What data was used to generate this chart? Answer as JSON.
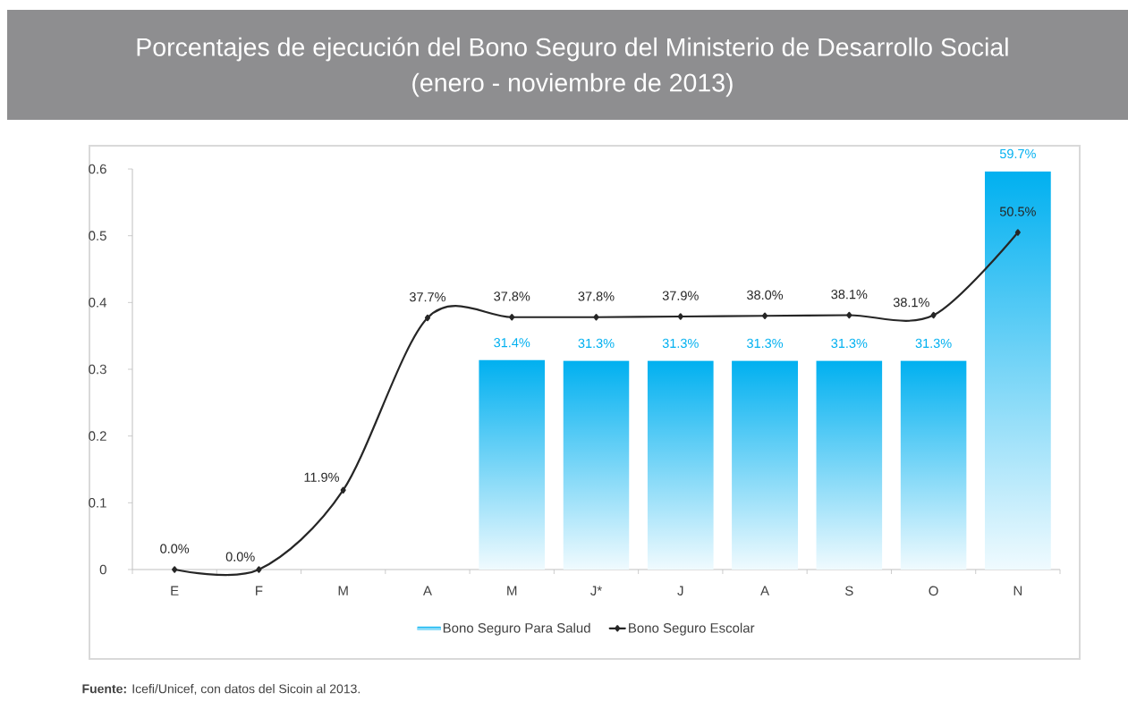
{
  "chart_data": {
    "type": "bar",
    "title": "Porcentajes de ejecución del Bono Seguro del Ministerio de Desarrollo Social",
    "subtitle": "(enero - noviembre de 2013)",
    "categories": [
      "E",
      "F",
      "M",
      "A",
      "M",
      "J*",
      "J",
      "A",
      "S",
      "O",
      "N"
    ],
    "series": [
      {
        "name": "Bono Seguro Para Salud",
        "color": "#00b0f0",
        "values": [
          null,
          null,
          null,
          null,
          0.314,
          0.313,
          0.313,
          0.313,
          0.313,
          0.313,
          0.597
        ],
        "value_labels": [
          null,
          null,
          null,
          null,
          "31.4%",
          "31.3%",
          "31.3%",
          "31.3%",
          "31.3%",
          "31.3%",
          "59.7%"
        ]
      },
      {
        "name": "Bono Seguro Escolar",
        "type": "line",
        "color": "#262626",
        "marker": "diamond",
        "values": [
          0,
          0,
          0.119,
          0.377,
          0.378,
          0.378,
          0.379,
          0.38,
          0.381,
          0.381,
          0.505
        ],
        "value_labels": [
          "0.0%",
          "0.0%",
          "11.9%",
          "37.7%",
          "37.8%",
          "37.8%",
          "37.9%",
          "38.0%",
          "38.1%",
          "38.1%",
          "50.5%"
        ]
      }
    ],
    "ylim": [
      0,
      0.6
    ],
    "yticks": [
      0,
      0.1,
      0.2,
      0.3,
      0.4,
      0.5,
      0.6
    ],
    "legend": "bottom",
    "annotations": [
      "**Fuente:** Icefi/Unicef, con datos del Sicoin al 2013."
    ]
  }
}
